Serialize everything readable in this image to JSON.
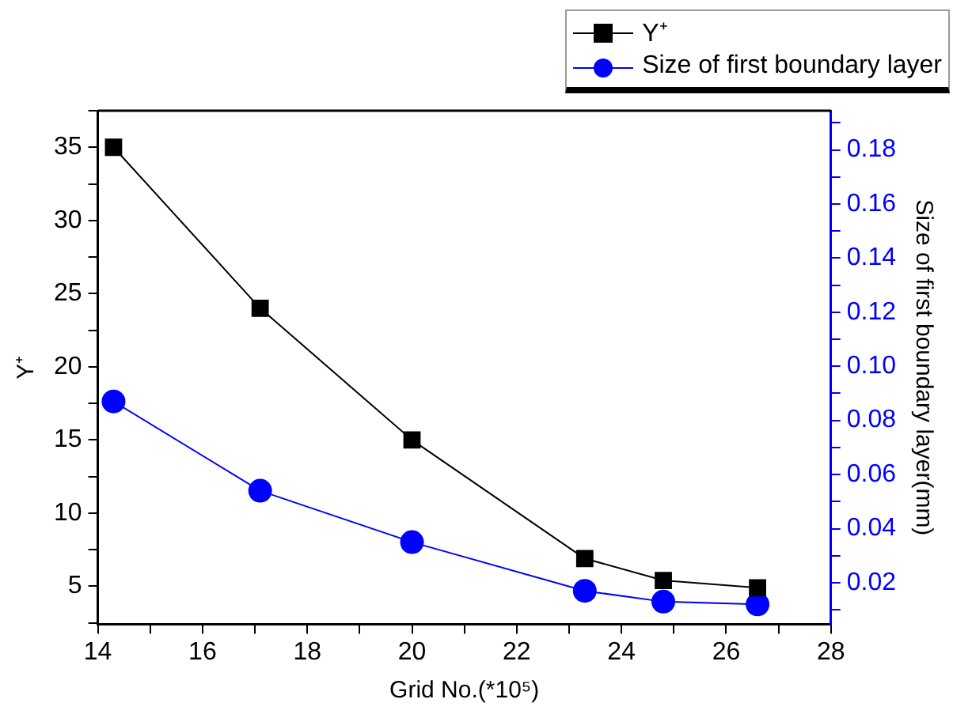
{
  "chart_data": {
    "type": "line",
    "xlabel": "Grid No.(*10⁵)",
    "ylabel": "Y⁺",
    "y2label": "Size of first boundary layer(mm)",
    "x": [
      14.3,
      17.1,
      20.0,
      23.3,
      24.8,
      26.6
    ],
    "series": [
      {
        "name": "Y⁺",
        "color": "#000000",
        "marker": "square",
        "values": [
          35,
          24,
          15,
          6.9,
          5.4,
          4.9
        ]
      },
      {
        "name": "Size of first boundary layer",
        "color": "#0000ff",
        "marker": "circle",
        "axis": "y2",
        "values": [
          0.087,
          0.054,
          0.035,
          0.017,
          0.013,
          0.012
        ]
      }
    ],
    "xlim": [
      14,
      28
    ],
    "xticks": [
      14,
      {
        "value": 15,
        "label": null
      },
      16,
      {
        "value": 17,
        "label": null
      },
      18,
      {
        "value": 19,
        "label": null
      },
      20,
      {
        "value": 21,
        "label": null
      },
      22,
      {
        "value": 23,
        "label": null
      },
      24,
      {
        "value": 25,
        "label": null
      },
      26,
      {
        "value": 27,
        "label": null
      },
      28
    ],
    "ylim": [
      2.4,
      37.5
    ],
    "yticks": [
      {
        "value": 2.5,
        "label": null
      },
      5,
      {
        "value": 7.5,
        "label": null
      },
      10,
      {
        "value": 12.5,
        "label": null
      },
      15,
      {
        "value": 17.5,
        "label": null
      },
      20,
      {
        "value": 22.5,
        "label": null
      },
      25,
      {
        "value": 27.5,
        "label": null
      },
      30,
      {
        "value": 32.5,
        "label": null
      },
      35,
      {
        "value": 37.5,
        "label": null
      }
    ],
    "y2lim": [
      0.0046,
      0.1945
    ],
    "y2ticks": [
      {
        "value": 0.01,
        "label": null
      },
      {
        "value": 0.02,
        "label": "0.02"
      },
      {
        "value": 0.03,
        "label": null
      },
      {
        "value": 0.04,
        "label": "0.04"
      },
      {
        "value": 0.05,
        "label": null
      },
      {
        "value": 0.06,
        "label": "0.06"
      },
      {
        "value": 0.07,
        "label": null
      },
      {
        "value": 0.08,
        "label": "0.08"
      },
      {
        "value": 0.09,
        "label": null
      },
      {
        "value": 0.1,
        "label": "0.10"
      },
      {
        "value": 0.11,
        "label": null
      },
      {
        "value": 0.12,
        "label": "0.12"
      },
      {
        "value": 0.13,
        "label": null
      },
      {
        "value": 0.14,
        "label": "0.14"
      },
      {
        "value": 0.15,
        "label": null
      },
      {
        "value": 0.16,
        "label": "0.16"
      },
      {
        "value": 0.17,
        "label": null
      },
      {
        "value": 0.18,
        "label": "0.18"
      },
      {
        "value": 0.19,
        "label": null
      }
    ],
    "grid": false,
    "legend": "top right",
    "line_style": "solid"
  }
}
